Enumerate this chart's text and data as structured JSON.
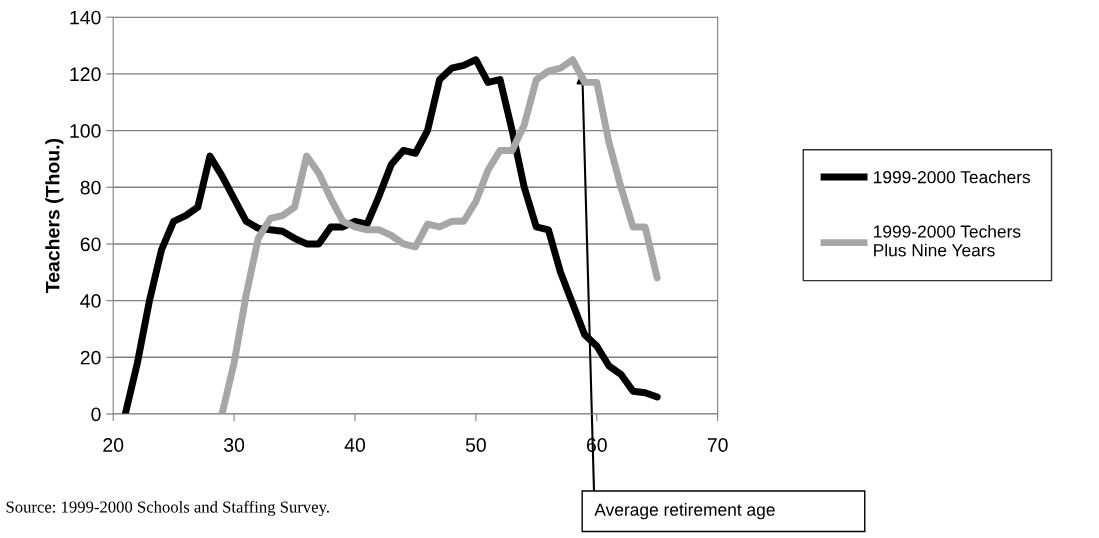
{
  "chart_data": {
    "type": "line",
    "ylabel": "Teachers (Thou.)",
    "xlim": [
      20,
      70
    ],
    "xticks": [
      20,
      30,
      40,
      50,
      60,
      70
    ],
    "ylim": [
      0,
      140
    ],
    "yticks": [
      0,
      20,
      40,
      60,
      80,
      100,
      120,
      140
    ],
    "grid": "y",
    "legend": "right",
    "marker": "none",
    "line_style": "solid",
    "series": [
      {
        "name": "1999-2000 Teachers",
        "color": "#000000",
        "x": [
          21,
          22,
          23,
          24,
          25,
          26,
          27,
          28,
          29,
          30,
          31,
          32,
          33,
          34,
          35,
          36,
          37,
          38,
          39,
          40,
          41,
          42,
          43,
          44,
          45,
          46,
          47,
          48,
          49,
          50,
          51,
          52,
          53,
          54,
          55,
          56,
          57,
          58,
          59,
          60,
          61,
          62,
          63,
          64,
          65
        ],
        "values": [
          0,
          18,
          40,
          58,
          68,
          70,
          73,
          91,
          84,
          76,
          68,
          65.5,
          65,
          64.5,
          62,
          60,
          60,
          66,
          66,
          68,
          67,
          77,
          88,
          93,
          92,
          100,
          118,
          122,
          123,
          125,
          117,
          118,
          100,
          80,
          66,
          65,
          50,
          39,
          28,
          24,
          17,
          14,
          8,
          7.5,
          6
        ]
      },
      {
        "name": "1999-2000 Techers\nPlus Nine Years",
        "color": "#a6a6a6",
        "x": [
          29,
          30,
          31,
          32,
          33,
          34,
          35,
          36,
          37,
          38,
          39,
          40,
          41,
          42,
          43,
          44,
          45,
          46,
          47,
          48,
          49,
          50,
          51,
          52,
          53,
          54,
          55,
          56,
          57,
          58,
          59,
          60,
          61,
          62,
          63,
          64,
          65
        ],
        "values": [
          0,
          18,
          42,
          62,
          69,
          70,
          73,
          91,
          85,
          76,
          68,
          66,
          65,
          65,
          63,
          60,
          59,
          67,
          66,
          68,
          68,
          75,
          86,
          93,
          93,
          102,
          118,
          121,
          122,
          125,
          117,
          117,
          96,
          80,
          66,
          66,
          48
        ]
      }
    ],
    "annotations": [
      {
        "text": "Average retirement age",
        "x": 58.8,
        "y": 121
      },
      "Source: 1999-2000 Schools and Staffing Survey."
    ]
  }
}
